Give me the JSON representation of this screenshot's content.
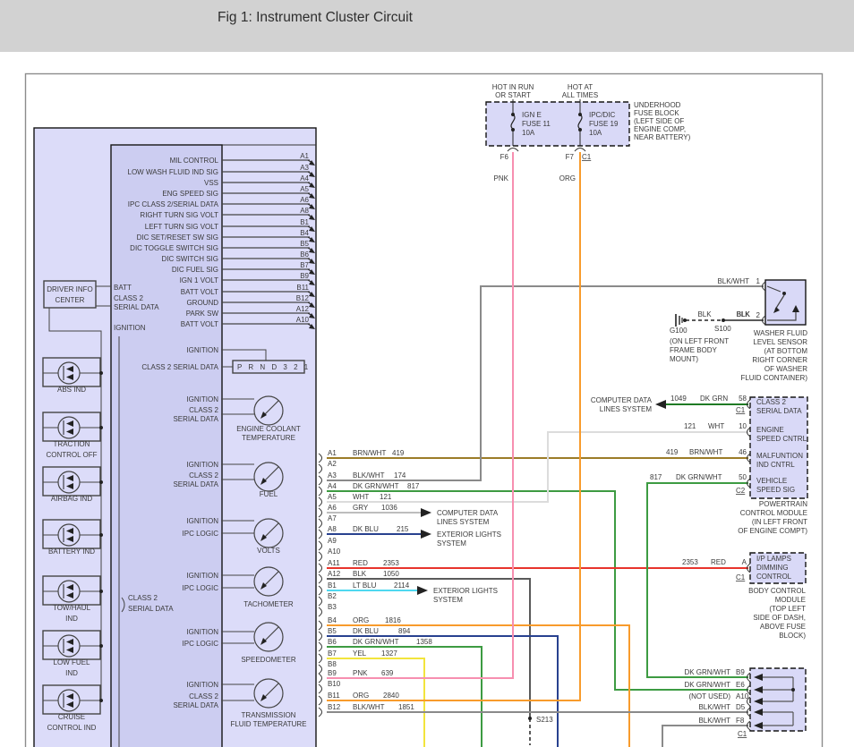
{
  "title": "Fig 1: Instrument Cluster Circuit",
  "colors": {
    "PNK": "#f78fb0",
    "ORG": "#f89b2c",
    "RED": "#e8342c",
    "YEL": "#f2e43c",
    "LT_BLU": "#4fd8f0",
    "DK_BLU": "#28418f",
    "DK_GRN": "#1f7a24",
    "DK_GRN_WHT": "#3d9b42",
    "BRN_WHT": "#9c7c28",
    "BLK": "#5a5a5a",
    "BLK_WHT": "#8a8a8a",
    "WHT": "#dcdcdc",
    "GRY": "#bdbdbd"
  },
  "cluster": {
    "dic": {
      "lines": [
        "DRIVER INFO",
        "CENTER"
      ]
    },
    "dic_inputs": [
      "BATT",
      "CLASS 2",
      "SERIAL DATA",
      "IGNITION"
    ],
    "pins": [
      {
        "label": "MIL CONTROL",
        "pin": "A1"
      },
      {
        "label": "LOW WASH FLUID IND SIG",
        "pin": "A3"
      },
      {
        "label": "VSS",
        "pin": "A4"
      },
      {
        "label": "ENG SPEED SIG",
        "pin": "A5"
      },
      {
        "label": "IPC CLASS 2/SERIAL DATA",
        "pin": "A6"
      },
      {
        "label": "RIGHT TURN SIG VOLT",
        "pin": "A8"
      },
      {
        "label": "LEFT TURN SIG VOLT",
        "pin": "B1"
      },
      {
        "label": "DIC SET/RESET SW SIG",
        "pin": "B4"
      },
      {
        "label": "DIC TOGGLE SWITCH SIG",
        "pin": "B5"
      },
      {
        "label": "DIC SWITCH SIG",
        "pin": "B6"
      },
      {
        "label": "DIC FUEL SIG",
        "pin": "B7"
      },
      {
        "label": "IGN 1 VOLT",
        "pin": "B9"
      },
      {
        "label": "BATT VOLT",
        "pin": "B11"
      },
      {
        "label": "GROUND",
        "pin": "B12"
      },
      {
        "label": "PARK SW",
        "pin": "A12"
      },
      {
        "label": "BATT VOLT",
        "pin": "A10"
      }
    ],
    "indicators": [
      {
        "lines": [
          "ABS IND"
        ]
      },
      {
        "lines": [
          "TRACTION",
          "CONTROL OFF"
        ]
      },
      {
        "lines": [
          "AIRBAG IND"
        ]
      },
      {
        "lines": [
          "BATTERY IND"
        ]
      },
      {
        "lines": [
          "TOW/HAUL",
          "IND"
        ]
      },
      {
        "lines": [
          "LOW FUEL",
          "IND"
        ]
      },
      {
        "lines": [
          "CRUISE",
          "CONTROL IND"
        ]
      }
    ],
    "bus_label": [
      "CLASS 2",
      "SERIAL DATA"
    ],
    "prnd": {
      "inputs": [
        "IGNITION",
        "CLASS 2 SERIAL DATA"
      ],
      "display": "P R N D 3 2 1"
    },
    "gauges": [
      {
        "inputs": [
          "IGNITION",
          "CLASS 2",
          "SERIAL DATA"
        ],
        "caption": [
          "ENGINE COOLANT",
          "TEMPERATURE"
        ]
      },
      {
        "inputs": [
          "IGNITION",
          "CLASS 2",
          "SERIAL DATA"
        ],
        "caption": [
          "FUEL"
        ]
      },
      {
        "inputs": [
          "IGNITION",
          "IPC LOGIC"
        ],
        "caption": [
          "VOLTS"
        ]
      },
      {
        "inputs": [
          "IGNITION",
          "IPC LOGIC"
        ],
        "caption": [
          "TACHOMETER"
        ]
      },
      {
        "inputs": [
          "IGNITION",
          "IPC LOGIC"
        ],
        "caption": [
          "SPEEDOMETER"
        ]
      },
      {
        "inputs": [
          "IGNITION",
          "CLASS 2",
          "SERIAL DATA"
        ],
        "caption": [
          "TRANSMISSION",
          "FLUID TEMPERATURE"
        ]
      }
    ]
  },
  "fuse_block": {
    "feed_left": [
      "HOT IN RUN",
      "OR START"
    ],
    "feed_right": [
      "HOT AT",
      "ALL TIMES"
    ],
    "fuse_left": [
      "IGN E",
      "FUSE 11",
      "10A"
    ],
    "fuse_right": [
      "IPC/DIC",
      "FUSE 19",
      "10A"
    ],
    "pin_left": "F6",
    "pin_right": "F7",
    "conn": "C1",
    "wire_left": "PNK",
    "wire_right": "ORG",
    "location": [
      "UNDERHOOD",
      "FUSE BLOCK",
      "(LEFT SIDE OF",
      "ENGINE COMP,",
      "NEAR BATTERY)"
    ]
  },
  "washer": {
    "wire1": "BLK/WHT",
    "pin1": "1",
    "wire2": "BLK",
    "pin2": "2",
    "caption": [
      "WASHER FLUID",
      "LEVEL SENSOR",
      "(AT BOTTOM",
      "RIGHT CORNER",
      "OF WASHER",
      "FLUID CONTAINER)"
    ],
    "ground": {
      "id": "G100",
      "splice": "S100",
      "wire": "BLK",
      "location": [
        "(ON LEFT FRONT",
        "FRAME BODY",
        "MOUNT)"
      ]
    }
  },
  "pcm": {
    "rows": [
      {
        "circuit": "1049",
        "color": "DK GRN",
        "pin": "58",
        "conn": "C1",
        "fn": [
          "CLASS 2",
          "SERIAL DATA"
        ]
      },
      {
        "circuit": "121",
        "color": "WHT",
        "pin": "10",
        "conn": "",
        "fn": [
          "ENGINE",
          "SPEED CNTRL"
        ]
      },
      {
        "circuit": "419",
        "color": "BRN/WHT",
        "pin": "46",
        "conn": "",
        "fn": [
          "MALFUNTION",
          "IND CNTRL"
        ]
      },
      {
        "circuit": "817",
        "color": "DK GRN/WHT",
        "pin": "50",
        "conn": "C2",
        "fn": [
          "VEHICLE",
          "SPEED SIG"
        ]
      }
    ],
    "caption": [
      "POWERTRAIN",
      "CONTROL MODULE",
      "(IN LEFT FRONT",
      "OF ENGINE COMPT)"
    ]
  },
  "ip_lamps": {
    "circuit": "2353",
    "color": "RED",
    "pin": "A",
    "conn": "C1",
    "fn": [
      "I/P LAMPS",
      "DIMMING",
      "CONTROL"
    ],
    "caption": [
      "BODY CONTROL",
      "MODULE",
      "(TOP LEFT",
      "SIDE OF DASH,",
      "ABOVE FUSE",
      "BLOCK)"
    ]
  },
  "bottom_module": {
    "rows": [
      {
        "color": "DK GRN/WHT",
        "pin": "B9"
      },
      {
        "color": "DK GRN/WHT",
        "pin": "E6"
      },
      {
        "color": "(NOT USED)",
        "pin": "A10"
      },
      {
        "color": "BLK/WHT",
        "pin": "D5"
      },
      {
        "color": "BLK/WHT",
        "pin": "F8"
      }
    ],
    "conn": "C1"
  },
  "splice": "S213",
  "connector_rows": [
    {
      "pin": "A1",
      "color": "BRN/WHT",
      "circuit": "419"
    },
    {
      "pin": "A2",
      "color": "",
      "circuit": ""
    },
    {
      "pin": "A3",
      "color": "BLK/WHT",
      "circuit": "174"
    },
    {
      "pin": "A4",
      "color": "DK GRN/WHT",
      "circuit": "817"
    },
    {
      "pin": "A5",
      "color": "WHT",
      "circuit": "121"
    },
    {
      "pin": "A6",
      "color": "GRY",
      "circuit": "1036"
    },
    {
      "pin": "A7",
      "color": "",
      "circuit": ""
    },
    {
      "pin": "A8",
      "color": "DK BLU",
      "circuit": "215"
    },
    {
      "pin": "A9",
      "color": "",
      "circuit": ""
    },
    {
      "pin": "A10",
      "color": "",
      "circuit": ""
    },
    {
      "pin": "A11",
      "color": "RED",
      "circuit": "2353"
    },
    {
      "pin": "A12",
      "color": "BLK",
      "circuit": "1050"
    },
    {
      "pin": "B1",
      "color": "LT BLU",
      "circuit": "2114"
    },
    {
      "pin": "B2",
      "color": "",
      "circuit": ""
    },
    {
      "pin": "B3",
      "color": "",
      "circuit": ""
    },
    {
      "pin": "B4",
      "color": "ORG",
      "circuit": "1816"
    },
    {
      "pin": "B5",
      "color": "DK BLU",
      "circuit": "894"
    },
    {
      "pin": "B6",
      "color": "DK GRN/WHT",
      "circuit": "1358"
    },
    {
      "pin": "B7",
      "color": "YEL",
      "circuit": "1327"
    },
    {
      "pin": "B8",
      "color": "",
      "circuit": ""
    },
    {
      "pin": "B9",
      "color": "PNK",
      "circuit": "639"
    },
    {
      "pin": "B10",
      "color": "",
      "circuit": ""
    },
    {
      "pin": "B11",
      "color": "ORG",
      "circuit": "2840"
    },
    {
      "pin": "B12",
      "color": "BLK/WHT",
      "circuit": "1851"
    }
  ],
  "branch_labels": {
    "computer_data": [
      "COMPUTER DATA",
      "LINES SYSTEM"
    ],
    "exterior_lights": [
      "EXTERIOR LIGHTS",
      "SYSTEM"
    ]
  }
}
